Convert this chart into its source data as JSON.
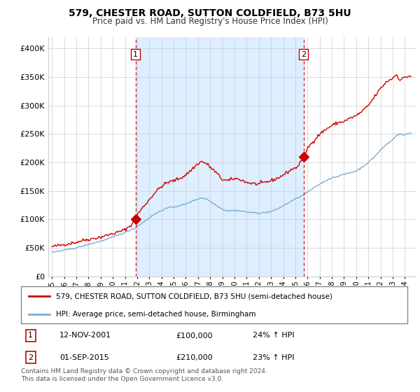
{
  "title": "579, CHESTER ROAD, SUTTON COLDFIELD, B73 5HU",
  "subtitle": "Price paid vs. HM Land Registry's House Price Index (HPI)",
  "legend_line1": "579, CHESTER ROAD, SUTTON COLDFIELD, B73 5HU (semi-detached house)",
  "legend_line2": "HPI: Average price, semi-detached house, Birmingham",
  "footer": "Contains HM Land Registry data © Crown copyright and database right 2024.\nThis data is licensed under the Open Government Licence v3.0.",
  "point1_label": "1",
  "point1_date": "12-NOV-2001",
  "point1_price": "£100,000",
  "point1_hpi": "24% ↑ HPI",
  "point2_label": "2",
  "point2_date": "01-SEP-2015",
  "point2_price": "£210,000",
  "point2_hpi": "23% ↑ HPI",
  "point1_x": 2001.87,
  "point1_y": 100000,
  "point2_x": 2015.67,
  "point2_y": 210000,
  "red_line_color": "#cc0000",
  "blue_line_color": "#7bafd4",
  "dashed_color": "#cc0000",
  "shade_color": "#ddeeff",
  "ylim": [
    0,
    420000
  ],
  "xlim": [
    1994.7,
    2024.9
  ],
  "yticks": [
    0,
    50000,
    100000,
    150000,
    200000,
    250000,
    300000,
    350000,
    400000
  ],
  "xticks": [
    1995,
    1996,
    1997,
    1998,
    1999,
    2000,
    2001,
    2002,
    2003,
    2004,
    2005,
    2006,
    2007,
    2008,
    2009,
    2010,
    2011,
    2012,
    2013,
    2014,
    2015,
    2016,
    2017,
    2018,
    2019,
    2020,
    2021,
    2022,
    2023,
    2024
  ]
}
